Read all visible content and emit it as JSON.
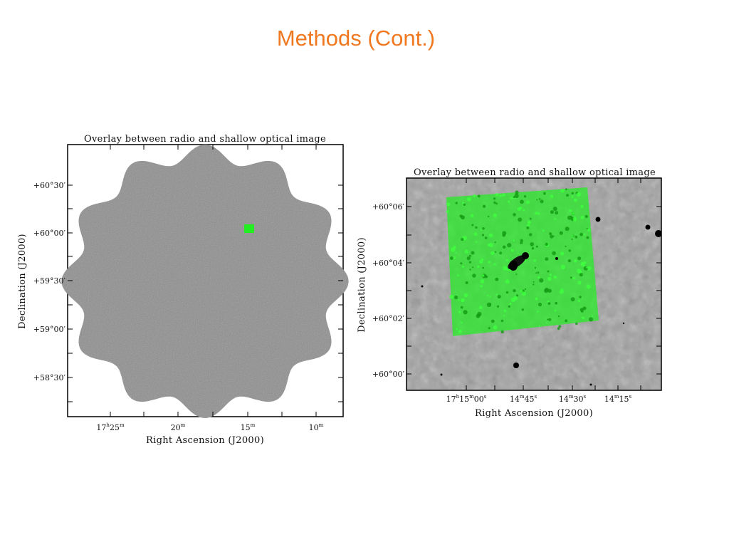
{
  "slide": {
    "title": "Methods (Cont.)"
  },
  "figures": [
    {
      "title": "Overlay between radio and shallow optical image",
      "xlabel": "Right Ascension (J2000)",
      "ylabel": "Declination (J2000)",
      "xticks": [
        {
          "h": "17",
          "hs": "h",
          "m": "25",
          "ms": "m"
        },
        {
          "h": "",
          "hs": "",
          "m": "20",
          "ms": "m"
        },
        {
          "h": "",
          "hs": "",
          "m": "15",
          "ms": "m"
        },
        {
          "h": "",
          "hs": "",
          "m": "10",
          "ms": "m"
        }
      ],
      "yticks": [
        "+60°30′",
        "+60°00′",
        "+59°30′",
        "+59°00′",
        "+58°30′"
      ]
    },
    {
      "title": "Overlay between radio and shallow optical image",
      "xlabel": "Right Ascension (J2000)",
      "ylabel": "Declination (J2000)",
      "xticks": [
        {
          "a": "17",
          "as": "h",
          "b": "15",
          "bs": "m",
          "c": "00",
          "cs": "s"
        },
        {
          "a": "",
          "as": "",
          "b": "14",
          "bs": "m",
          "c": "45",
          "cs": "s"
        },
        {
          "a": "",
          "as": "",
          "b": "14",
          "bs": "m",
          "c": "30",
          "cs": "s"
        },
        {
          "a": "",
          "as": "",
          "b": "14",
          "bs": "m",
          "c": "15",
          "cs": "s"
        }
      ],
      "yticks": [
        "+60°06′",
        "+60°04′",
        "+60°02′",
        "+60°00′"
      ]
    }
  ],
  "colors": {
    "title": "#f07820",
    "field": "#8e8e8e",
    "optical_bg": "#a2a2a2",
    "overlay": "#22ee22"
  }
}
